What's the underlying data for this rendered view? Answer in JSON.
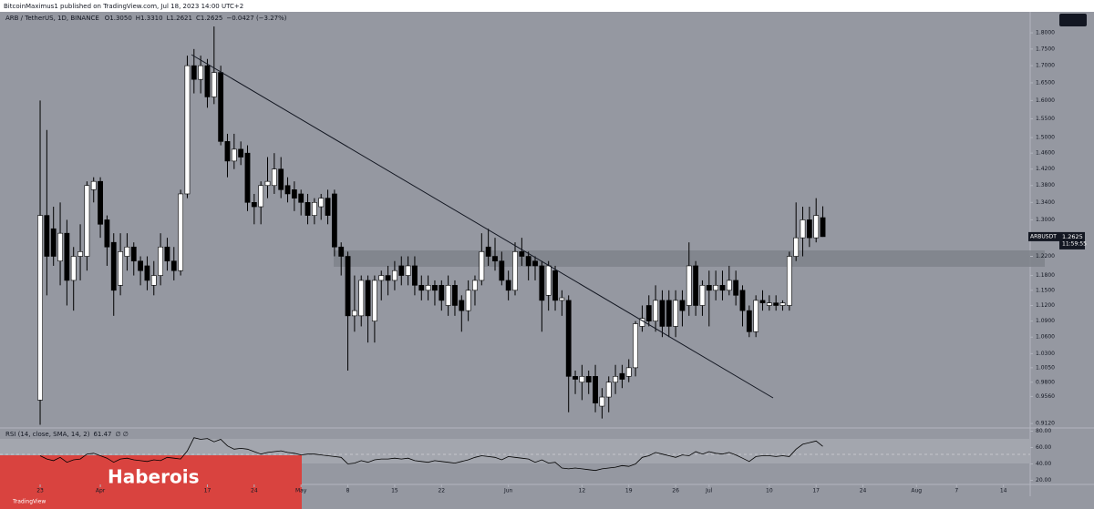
{
  "header": "BitcoinMaximus1 published on TradingView.com, Jul 18, 2023 14:00 UTC+2",
  "chart_data": {
    "type": "candlestick",
    "legend": {
      "title": "ARB / TetherUS, 1D, BINANCE",
      "items": [
        {
          "key": "O",
          "value": "1.3050"
        },
        {
          "key": "H",
          "value": "1.3310"
        },
        {
          "key": "L",
          "value": "1.2621"
        },
        {
          "key": "C",
          "value": "1.2625"
        }
      ],
      "change": "−0.0427 (−3.27%)"
    },
    "last": {
      "symbol": "ARBUSDT",
      "price": "1.2625",
      "countdown": "11:59:55"
    },
    "up_color": "#ffffff",
    "down_color": "#000000",
    "log_scale": true,
    "grid": false,
    "xlim": [
      "Mar 17",
      "Aug 18"
    ],
    "ylim": [
      0.905,
      1.867
    ],
    "yticks": [
      {
        "value": 1.8,
        "label": "1.8000"
      },
      {
        "value": 1.75,
        "label": "1.7500"
      },
      {
        "value": 1.7,
        "label": "1.7000"
      },
      {
        "value": 1.65,
        "label": "1.6500"
      },
      {
        "value": 1.6,
        "label": "1.6000"
      },
      {
        "value": 1.55,
        "label": "1.5500"
      },
      {
        "value": 1.5,
        "label": "1.5000"
      },
      {
        "value": 1.46,
        "label": "1.4600"
      },
      {
        "value": 1.42,
        "label": "1.4200"
      },
      {
        "value": 1.38,
        "label": "1.3800"
      },
      {
        "value": 1.34,
        "label": "1.3400"
      },
      {
        "value": 1.3,
        "label": "1.3000"
      },
      {
        "value": 1.22,
        "label": "1.2200"
      },
      {
        "value": 1.18,
        "label": "1.1800"
      },
      {
        "value": 1.15,
        "label": "1.1500"
      },
      {
        "value": 1.12,
        "label": "1.1200"
      },
      {
        "value": 1.09,
        "label": "1.0900"
      },
      {
        "value": 1.06,
        "label": "1.0600"
      },
      {
        "value": 1.03,
        "label": "1.0300"
      },
      {
        "value": 1.005,
        "label": "1.0050"
      },
      {
        "value": 0.98,
        "label": "0.9800"
      },
      {
        "value": 0.956,
        "label": "0.9560"
      },
      {
        "value": 0.912,
        "label": "0.9120"
      }
    ],
    "xticks": [
      {
        "value": "Mar 23",
        "label": "23"
      },
      {
        "value": "Apr 1",
        "label": "Apr"
      },
      {
        "value": "Apr 17",
        "label": "17"
      },
      {
        "value": "Apr 24",
        "label": "24"
      },
      {
        "value": "May 1",
        "label": "May"
      },
      {
        "value": "May 8",
        "label": "8"
      },
      {
        "value": "May 15",
        "label": "15"
      },
      {
        "value": "May 22",
        "label": "22"
      },
      {
        "value": "Jun 1",
        "label": "Jun"
      },
      {
        "value": "Jun 12",
        "label": "12"
      },
      {
        "value": "Jun 19",
        "label": "19"
      },
      {
        "value": "Jun 26",
        "label": "26"
      },
      {
        "value": "Jul 1",
        "label": "Jul"
      },
      {
        "value": "Jul 10",
        "label": "10"
      },
      {
        "value": "Jul 17",
        "label": "17"
      },
      {
        "value": "Jul 24",
        "label": "24"
      },
      {
        "value": "Aug 1",
        "label": "Aug"
      },
      {
        "value": "Aug 7",
        "label": "7"
      },
      {
        "value": "Aug 14",
        "label": "14"
      }
    ],
    "x": [
      "Mar 23",
      "Mar 24",
      "Mar 25",
      "Mar 26",
      "Mar 27",
      "Mar 28",
      "Mar 29",
      "Mar 30",
      "Mar 31",
      "Apr 1",
      "Apr 2",
      "Apr 3",
      "Apr 4",
      "Apr 5",
      "Apr 6",
      "Apr 7",
      "Apr 8",
      "Apr 9",
      "Apr 10",
      "Apr 11",
      "Apr 12",
      "Apr 13",
      "Apr 14",
      "Apr 15",
      "Apr 16",
      "Apr 17",
      "Apr 18",
      "Apr 19",
      "Apr 20",
      "Apr 21",
      "Apr 22",
      "Apr 23",
      "Apr 24",
      "Apr 25",
      "Apr 26",
      "Apr 27",
      "Apr 28",
      "Apr 29",
      "Apr 30",
      "May 1",
      "May 2",
      "May 3",
      "May 4",
      "May 5",
      "May 6",
      "May 7",
      "May 8",
      "May 9",
      "May 10",
      "May 11",
      "May 12",
      "May 13",
      "May 14",
      "May 15",
      "May 16",
      "May 17",
      "May 18",
      "May 19",
      "May 20",
      "May 21",
      "May 22",
      "May 23",
      "May 24",
      "May 25",
      "May 26",
      "May 27",
      "May 28",
      "May 29",
      "May 30",
      "May 31",
      "Jun 1",
      "Jun 2",
      "Jun 3",
      "Jun 4",
      "Jun 5",
      "Jun 6",
      "Jun 7",
      "Jun 8",
      "Jun 9",
      "Jun 10",
      "Jun 11",
      "Jun 12",
      "Jun 13",
      "Jun 14",
      "Jun 15",
      "Jun 16",
      "Jun 17",
      "Jun 18",
      "Jun 19",
      "Jun 20",
      "Jun 21",
      "Jun 22",
      "Jun 23",
      "Jun 24",
      "Jun 25",
      "Jun 26",
      "Jun 27",
      "Jun 28",
      "Jun 29",
      "Jun 30",
      "Jul 1",
      "Jul 2",
      "Jul 3",
      "Jul 4",
      "Jul 5",
      "Jul 6",
      "Jul 7",
      "Jul 8",
      "Jul 9",
      "Jul 10",
      "Jul 11",
      "Jul 12",
      "Jul 13",
      "Jul 14",
      "Jul 15",
      "Jul 16",
      "Jul 17",
      "Jul 18"
    ],
    "open": [
      0.95,
      1.31,
      1.28,
      1.21,
      1.27,
      1.17,
      1.22,
      1.22,
      1.37,
      1.39,
      1.3,
      1.25,
      1.16,
      1.22,
      1.24,
      1.21,
      1.2,
      1.16,
      1.18,
      1.24,
      1.21,
      1.19,
      1.36,
      1.7,
      1.66,
      1.7,
      1.61,
      1.68,
      1.49,
      1.44,
      1.47,
      1.46,
      1.34,
      1.33,
      1.38,
      1.38,
      1.42,
      1.38,
      1.37,
      1.36,
      1.34,
      1.31,
      1.33,
      1.35,
      1.36,
      1.24,
      1.22,
      1.1,
      1.1,
      1.17,
      1.09,
      1.17,
      1.18,
      1.17,
      1.2,
      1.18,
      1.2,
      1.16,
      1.15,
      1.16,
      1.16,
      1.12,
      1.16,
      1.13,
      1.11,
      1.15,
      1.17,
      1.24,
      1.22,
      1.21,
      1.17,
      1.15,
      1.23,
      1.22,
      1.21,
      1.2,
      1.14,
      1.19,
      1.13,
      1.13,
      0.99,
      0.98,
      0.99,
      0.99,
      0.94,
      0.955,
      0.98,
      0.995,
      0.99,
      1.005,
      1.08,
      1.12,
      1.09,
      1.13,
      1.13,
      1.08,
      1.13,
      1.12,
      1.2,
      1.12,
      1.16,
      1.15,
      1.16,
      1.15,
      1.17,
      1.15,
      1.11,
      1.07,
      1.13,
      1.12,
      1.125,
      1.12,
      1.12,
      1.22,
      1.26,
      1.3,
      1.26,
      1.305
    ],
    "high": [
      1.6,
      1.52,
      1.33,
      1.34,
      1.3,
      1.24,
      1.29,
      1.39,
      1.4,
      1.4,
      1.31,
      1.27,
      1.27,
      1.27,
      1.25,
      1.22,
      1.22,
      1.21,
      1.27,
      1.26,
      1.24,
      1.37,
      1.73,
      1.75,
      1.73,
      1.72,
      1.82,
      1.7,
      1.51,
      1.51,
      1.49,
      1.48,
      1.36,
      1.39,
      1.45,
      1.46,
      1.45,
      1.4,
      1.39,
      1.37,
      1.36,
      1.35,
      1.36,
      1.37,
      1.37,
      1.25,
      1.23,
      1.18,
      1.18,
      1.18,
      1.18,
      1.19,
      1.2,
      1.21,
      1.22,
      1.22,
      1.22,
      1.18,
      1.18,
      1.17,
      1.17,
      1.18,
      1.17,
      1.14,
      1.17,
      1.18,
      1.27,
      1.28,
      1.26,
      1.23,
      1.19,
      1.25,
      1.26,
      1.23,
      1.22,
      1.21,
      1.21,
      1.2,
      1.15,
      1.14,
      1.0,
      1.01,
      1.0,
      1.01,
      0.97,
      0.99,
      1.01,
      1.01,
      1.02,
      1.09,
      1.12,
      1.14,
      1.16,
      1.15,
      1.15,
      1.15,
      1.15,
      1.25,
      1.21,
      1.17,
      1.19,
      1.19,
      1.19,
      1.2,
      1.19,
      1.16,
      1.12,
      1.14,
      1.15,
      1.14,
      1.14,
      1.13,
      1.23,
      1.34,
      1.33,
      1.33,
      1.35,
      1.331
    ],
    "low": [
      0.91,
      1.14,
      1.2,
      1.16,
      1.12,
      1.11,
      1.17,
      1.19,
      1.34,
      1.26,
      1.2,
      1.1,
      1.14,
      1.19,
      1.18,
      1.16,
      1.15,
      1.14,
      1.16,
      1.19,
      1.17,
      1.18,
      1.35,
      1.62,
      1.62,
      1.58,
      1.59,
      1.48,
      1.4,
      1.42,
      1.43,
      1.32,
      1.29,
      1.29,
      1.35,
      1.36,
      1.35,
      1.34,
      1.32,
      1.31,
      1.29,
      1.29,
      1.3,
      1.29,
      1.22,
      1.18,
      1.0,
      1.07,
      1.08,
      1.05,
      1.05,
      1.13,
      1.14,
      1.15,
      1.16,
      1.16,
      1.14,
      1.13,
      1.13,
      1.12,
      1.11,
      1.1,
      1.1,
      1.07,
      1.09,
      1.12,
      1.16,
      1.2,
      1.19,
      1.16,
      1.13,
      1.14,
      1.2,
      1.17,
      1.17,
      1.07,
      1.11,
      1.11,
      1.1,
      0.93,
      0.96,
      0.95,
      0.96,
      0.93,
      0.92,
      0.93,
      0.96,
      0.97,
      0.98,
      0.99,
      1.07,
      1.08,
      1.07,
      1.06,
      1.06,
      1.06,
      1.08,
      1.1,
      1.1,
      1.1,
      1.08,
      1.13,
      1.13,
      1.14,
      1.12,
      1.08,
      1.06,
      1.06,
      1.11,
      1.11,
      1.11,
      1.11,
      1.11,
      1.21,
      1.22,
      1.24,
      1.25,
      1.2621
    ],
    "close": [
      1.31,
      1.22,
      1.22,
      1.27,
      1.17,
      1.22,
      1.23,
      1.38,
      1.39,
      1.29,
      1.24,
      1.15,
      1.23,
      1.24,
      1.21,
      1.19,
      1.17,
      1.18,
      1.24,
      1.21,
      1.19,
      1.36,
      1.7,
      1.66,
      1.7,
      1.61,
      1.68,
      1.49,
      1.44,
      1.47,
      1.45,
      1.34,
      1.33,
      1.38,
      1.39,
      1.42,
      1.37,
      1.36,
      1.35,
      1.34,
      1.31,
      1.34,
      1.35,
      1.31,
      1.24,
      1.22,
      1.1,
      1.11,
      1.17,
      1.1,
      1.17,
      1.18,
      1.17,
      1.19,
      1.18,
      1.2,
      1.16,
      1.15,
      1.16,
      1.15,
      1.13,
      1.16,
      1.12,
      1.11,
      1.15,
      1.17,
      1.23,
      1.22,
      1.21,
      1.17,
      1.15,
      1.23,
      1.22,
      1.2,
      1.2,
      1.13,
      1.2,
      1.13,
      1.135,
      0.99,
      0.985,
      0.99,
      0.98,
      0.945,
      0.955,
      0.98,
      0.99,
      0.985,
      1.005,
      1.085,
      1.095,
      1.09,
      1.13,
      1.08,
      1.08,
      1.13,
      1.11,
      1.2,
      1.12,
      1.16,
      1.15,
      1.16,
      1.15,
      1.17,
      1.14,
      1.11,
      1.07,
      1.13,
      1.125,
      1.125,
      1.12,
      1.125,
      1.22,
      1.26,
      1.3,
      1.26,
      1.31,
      1.2625
    ],
    "rsi": {
      "name": "RSI (14, close, SMA, 14, 2)",
      "flags": "∅ ∅",
      "color": "#000000",
      "ylim": [
        15,
        85
      ],
      "yticks": [
        {
          "value": 80,
          "label": "80.00"
        },
        {
          "value": 60,
          "label": "60.00"
        },
        {
          "value": 40,
          "label": "40.00"
        },
        {
          "value": 20,
          "label": "20.00"
        }
      ],
      "values": [
        50,
        46,
        44,
        48,
        42,
        45,
        46,
        52,
        53,
        50,
        47,
        42,
        46,
        47,
        45,
        44,
        43,
        45,
        44,
        48,
        47,
        46,
        56,
        72,
        70,
        71,
        67,
        70,
        62,
        58,
        59,
        58,
        55,
        52,
        54,
        55,
        56,
        54,
        53,
        51,
        52,
        52,
        51,
        50,
        49,
        48,
        40,
        41,
        44,
        42,
        45,
        46,
        46,
        47,
        46,
        47,
        44,
        43,
        42,
        44,
        43,
        42,
        41,
        43,
        45,
        48,
        50,
        49,
        48,
        45,
        49,
        48,
        47,
        46,
        42,
        45,
        41,
        42,
        35,
        34,
        35,
        34,
        33,
        32,
        34,
        35,
        36,
        38,
        37,
        40,
        48,
        50,
        54,
        52,
        50,
        48,
        51,
        50,
        55,
        52,
        55,
        53,
        52,
        54,
        51,
        47,
        43,
        49,
        50,
        50,
        49,
        50,
        49,
        58,
        64,
        66,
        68,
        61.47
      ]
    },
    "watermark": "Haberois",
    "footer": "TradingView"
  }
}
